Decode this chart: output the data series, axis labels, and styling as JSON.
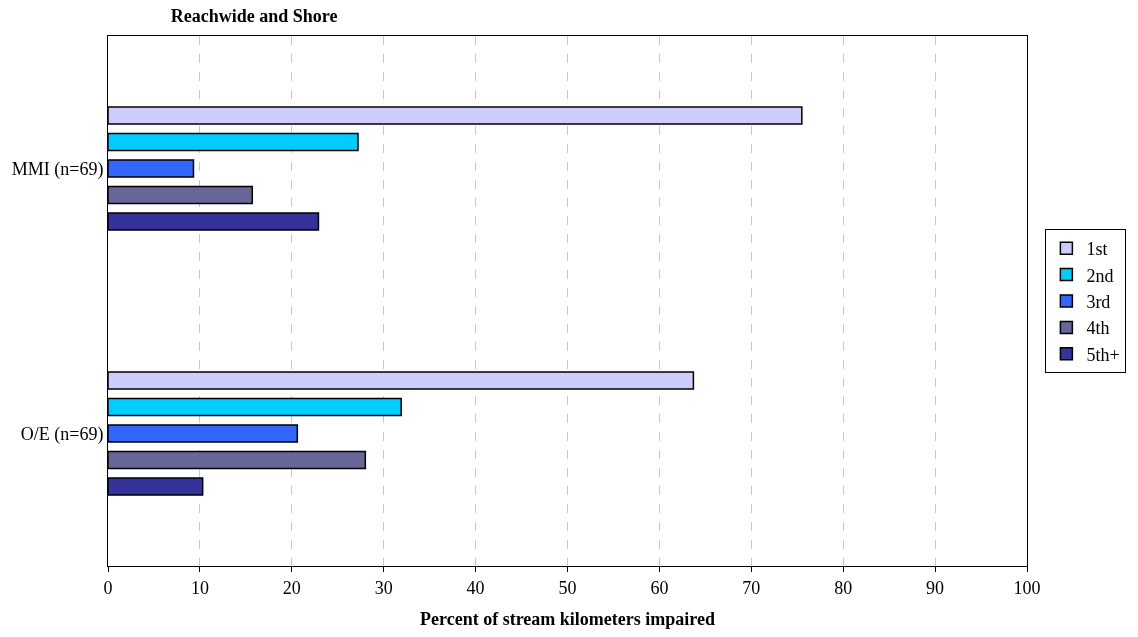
{
  "chart_data": {
    "type": "bar",
    "orientation": "horizontal",
    "title": "Reachwide and Shore",
    "xlabel": "Percent of stream kilometers impaired",
    "categories": [
      "MMI (n=69)",
      "O/E (n=69)"
    ],
    "series": [
      {
        "name": "1st",
        "color": "#ccccff",
        "values": [
          75.5,
          63.7
        ]
      },
      {
        "name": "2nd",
        "color": "#00ccff",
        "values": [
          27.2,
          31.9
        ]
      },
      {
        "name": "3rd",
        "color": "#3366ff",
        "values": [
          9.3,
          20.6
        ]
      },
      {
        "name": "4th",
        "color": "#666699",
        "values": [
          15.7,
          28.0
        ]
      },
      {
        "name": "5th+",
        "color": "#333399",
        "values": [
          22.9,
          10.3
        ]
      }
    ],
    "xlim": [
      0,
      100
    ],
    "xticks": [
      0,
      10,
      20,
      30,
      40,
      50,
      60,
      70,
      80,
      90,
      100
    ],
    "grid": "x",
    "legend": "right"
  }
}
